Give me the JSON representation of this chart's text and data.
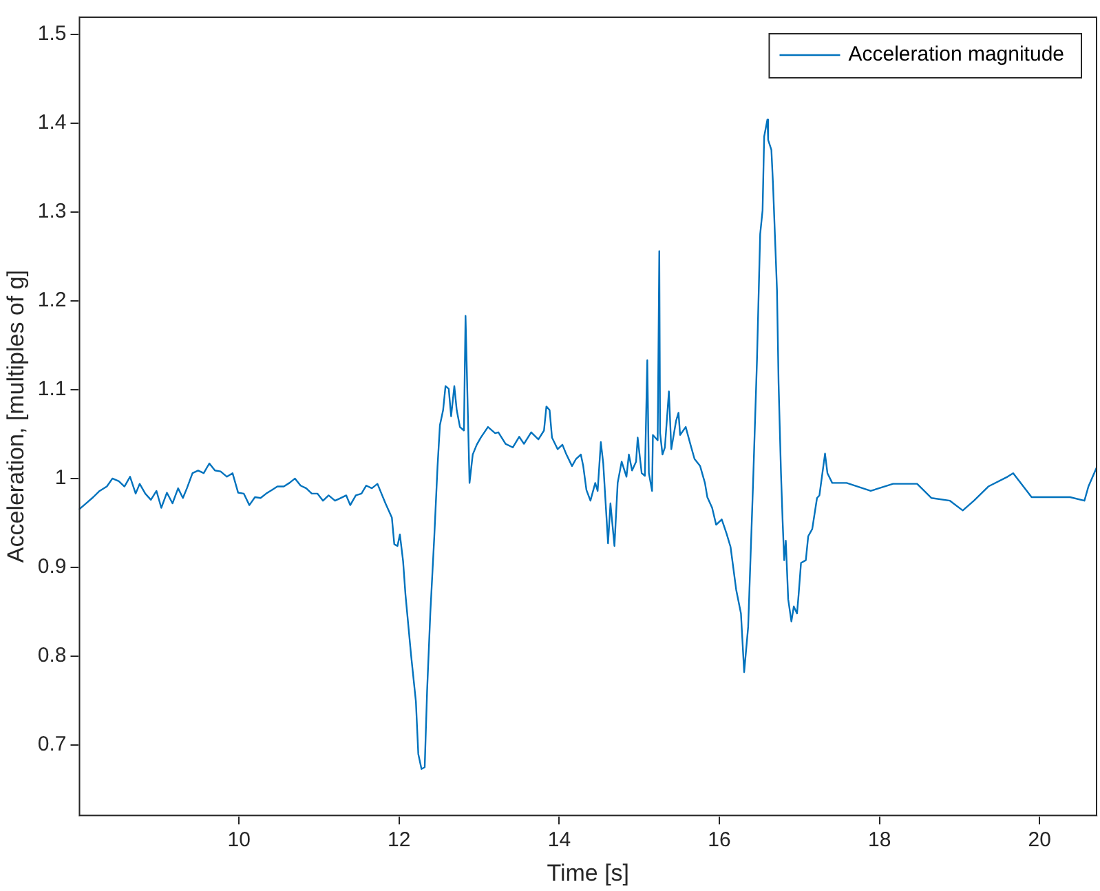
{
  "chart_data": {
    "type": "line",
    "xlabel": "Time [s]",
    "ylabel": "Acceleration, [multiples of g]",
    "xlim": [
      8.0,
      20.72
    ],
    "xticks": [
      10,
      12,
      14,
      16,
      18,
      20
    ],
    "ylim": [
      0.62,
      1.52
    ],
    "yticks": [
      0.7,
      0.8,
      0.9,
      1,
      1.1,
      1.2,
      1.3,
      1.4,
      1.5
    ],
    "grid": false,
    "legend": "top right",
    "marker": "none",
    "line_style": "solid",
    "x": [
      8.0,
      8.09,
      8.18,
      8.26,
      8.35,
      8.42,
      8.5,
      8.57,
      8.64,
      8.71,
      8.76,
      8.83,
      8.9,
      8.97,
      9.03,
      9.1,
      9.17,
      9.24,
      9.3,
      9.35,
      9.42,
      9.49,
      9.56,
      9.63,
      9.7,
      9.77,
      9.85,
      9.92,
      9.99,
      10.06,
      10.13,
      10.2,
      10.27,
      10.34,
      10.41,
      10.48,
      10.56,
      10.63,
      10.7,
      10.77,
      10.84,
      10.91,
      10.98,
      11.05,
      11.12,
      11.2,
      11.27,
      11.34,
      11.39,
      11.46,
      11.53,
      11.59,
      11.66,
      11.73,
      11.78,
      11.83,
      11.91,
      11.94,
      11.98,
      12.01,
      12.05,
      12.08,
      12.15,
      12.21,
      12.24,
      12.28,
      12.32,
      12.35,
      12.39,
      12.44,
      12.48,
      12.51,
      12.55,
      12.58,
      12.62,
      12.65,
      12.69,
      12.72,
      12.76,
      12.81,
      12.83,
      12.88,
      12.92,
      12.97,
      13.02,
      13.11,
      13.2,
      13.24,
      13.33,
      13.42,
      13.5,
      13.56,
      13.65,
      13.74,
      13.81,
      13.84,
      13.88,
      13.91,
      13.98,
      14.04,
      14.09,
      14.16,
      14.21,
      14.27,
      14.3,
      14.34,
      14.39,
      14.45,
      14.48,
      14.52,
      14.55,
      14.61,
      14.64,
      14.69,
      14.73,
      14.78,
      14.84,
      14.87,
      14.91,
      14.96,
      14.98,
      15.03,
      15.07,
      15.1,
      15.12,
      15.16,
      15.17,
      15.23,
      15.25,
      15.26,
      15.29,
      15.32,
      15.37,
      15.4,
      15.46,
      15.49,
      15.51,
      15.58,
      15.64,
      15.69,
      15.76,
      15.82,
      15.85,
      15.91,
      15.96,
      16.03,
      16.09,
      16.14,
      16.21,
      16.27,
      16.31,
      16.36,
      16.42,
      16.47,
      16.51,
      16.54,
      16.56,
      16.6,
      16.61,
      16.65,
      16.67,
      16.72,
      16.74,
      16.77,
      16.79,
      16.81,
      16.83,
      16.86,
      16.9,
      16.93,
      16.97,
      16.99,
      17.02,
      17.08,
      17.11,
      17.16,
      17.22,
      17.25,
      17.32,
      17.35,
      17.41,
      17.59,
      17.89,
      18.17,
      18.47,
      18.65,
      18.88,
      19.04,
      19.18,
      19.36,
      19.6,
      19.67,
      19.9,
      20.13,
      20.38,
      20.56,
      20.61,
      20.72
    ],
    "series": [
      {
        "name": "Acceleration magnitude",
        "color": "#0072bd",
        "values": [
          0.965,
          0.972,
          0.979,
          0.986,
          0.991,
          1.0,
          0.997,
          0.991,
          1.002,
          0.983,
          0.994,
          0.983,
          0.976,
          0.986,
          0.967,
          0.984,
          0.972,
          0.989,
          0.978,
          0.989,
          1.006,
          1.009,
          1.006,
          1.017,
          1.009,
          1.008,
          1.002,
          1.006,
          0.984,
          0.983,
          0.97,
          0.979,
          0.978,
          0.983,
          0.987,
          0.991,
          0.991,
          0.995,
          1.0,
          0.992,
          0.989,
          0.983,
          0.983,
          0.975,
          0.981,
          0.975,
          0.978,
          0.981,
          0.97,
          0.981,
          0.983,
          0.992,
          0.989,
          0.994,
          0.983,
          0.972,
          0.956,
          0.926,
          0.924,
          0.937,
          0.907,
          0.869,
          0.801,
          0.749,
          0.69,
          0.673,
          0.675,
          0.761,
          0.848,
          0.935,
          1.013,
          1.06,
          1.077,
          1.104,
          1.101,
          1.07,
          1.104,
          1.077,
          1.058,
          1.054,
          1.183,
          0.995,
          1.027,
          1.038,
          1.046,
          1.058,
          1.051,
          1.052,
          1.039,
          1.035,
          1.047,
          1.039,
          1.052,
          1.044,
          1.054,
          1.081,
          1.077,
          1.046,
          1.033,
          1.038,
          1.027,
          1.014,
          1.022,
          1.027,
          1.014,
          0.987,
          0.975,
          0.995,
          0.986,
          1.041,
          1.017,
          0.927,
          0.972,
          0.924,
          0.995,
          1.019,
          1.002,
          1.027,
          1.009,
          1.019,
          1.046,
          1.006,
          1.003,
          1.133,
          1.006,
          0.986,
          1.049,
          1.043,
          1.256,
          1.051,
          1.027,
          1.035,
          1.098,
          1.033,
          1.065,
          1.074,
          1.049,
          1.058,
          1.038,
          1.022,
          1.014,
          0.995,
          0.979,
          0.967,
          0.948,
          0.954,
          0.938,
          0.923,
          0.875,
          0.848,
          0.782,
          0.833,
          0.991,
          1.133,
          1.275,
          1.302,
          1.385,
          1.404,
          1.381,
          1.37,
          1.332,
          1.212,
          1.107,
          1.006,
          0.953,
          0.908,
          0.93,
          0.864,
          0.839,
          0.856,
          0.848,
          0.869,
          0.905,
          0.908,
          0.935,
          0.943,
          0.978,
          0.981,
          1.028,
          1.006,
          0.995,
          0.995,
          0.986,
          0.994,
          0.994,
          0.978,
          0.975,
          0.964,
          0.975,
          0.991,
          1.002,
          1.006,
          0.979,
          0.979,
          0.979,
          0.975,
          0.991,
          1.014
        ]
      }
    ]
  }
}
